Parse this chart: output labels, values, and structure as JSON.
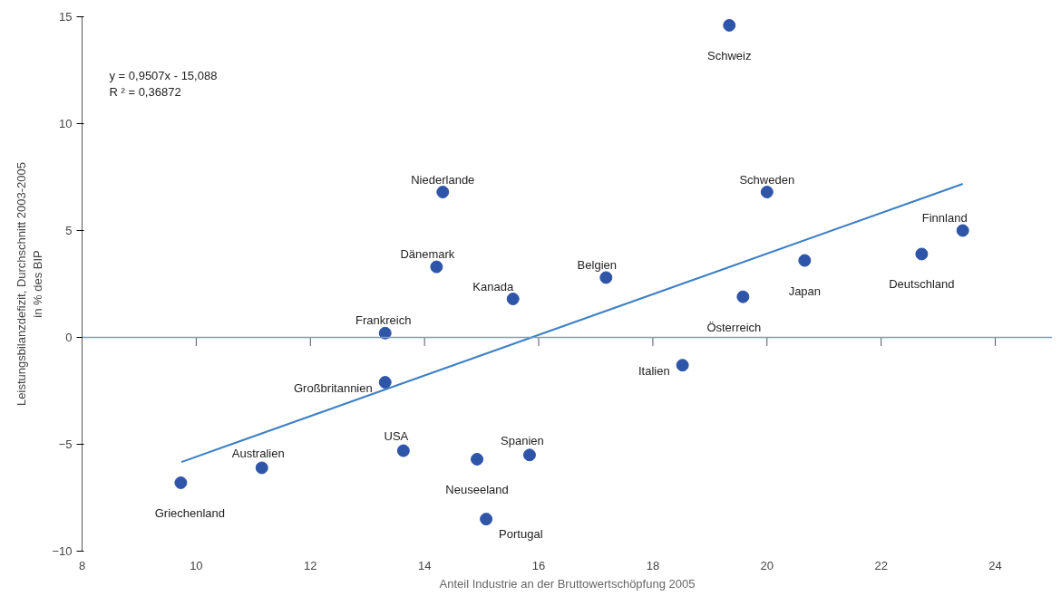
{
  "chart_data": {
    "type": "scatter",
    "xlabel": "Anteil Industrie an der Bruttowertschöpfung 2005",
    "ylabel": "Leistungsbilanzdefizit, Durchschnitt 2003-2005\nin % des BIP",
    "xlim": [
      8,
      25
    ],
    "ylim": [
      -10,
      15
    ],
    "xticks": [
      8,
      10,
      12,
      14,
      16,
      18,
      20,
      22,
      24
    ],
    "yticks": [
      -10,
      -5,
      0,
      5,
      10,
      15
    ],
    "grid": false,
    "marker": "circle",
    "series": [
      {
        "color": "#2f55a8",
        "x": [
          19.34,
          14.32,
          20.0,
          23.43,
          14.21,
          17.18,
          15.55,
          20.66,
          22.71,
          19.58,
          13.31,
          18.52,
          13.31,
          13.63,
          11.15,
          9.73,
          14.92,
          15.84,
          15.08
        ],
        "values": [
          14.6,
          6.8,
          6.8,
          5.0,
          3.3,
          2.8,
          1.8,
          3.6,
          3.9,
          1.9,
          0.2,
          -1.3,
          -2.1,
          -5.3,
          -6.1,
          -6.8,
          -5.7,
          -5.5,
          -8.5
        ]
      },
      {
        "type": "line",
        "marker": "none",
        "color": "#3d7fc4",
        "x": [
          9.74,
          23.43
        ],
        "values": [
          -5.83,
          7.18
        ]
      }
    ],
    "ref_lines": [
      {
        "axis": "y",
        "value": 0,
        "color": "#7a9cc6"
      }
    ],
    "annotations": [
      {
        "text": "Schweiz",
        "x": 19.34,
        "y": 14.6
      },
      {
        "text": "Niederlande",
        "x": 14.32,
        "y": 6.8
      },
      {
        "text": "Schweden",
        "x": 20.0,
        "y": 6.8
      },
      {
        "text": "Finnland",
        "x": 23.43,
        "y": 5.0
      },
      {
        "text": "Dänemark",
        "x": 14.21,
        "y": 3.3
      },
      {
        "text": "Belgien",
        "x": 17.18,
        "y": 2.8
      },
      {
        "text": "Kanada",
        "x": 15.55,
        "y": 1.8
      },
      {
        "text": "Japan",
        "x": 20.66,
        "y": 3.6
      },
      {
        "text": "Deutschland",
        "x": 22.71,
        "y": 3.9
      },
      {
        "text": "Österreich",
        "x": 19.58,
        "y": 1.9
      },
      {
        "text": "Frankreich",
        "x": 13.31,
        "y": 0.2
      },
      {
        "text": "Italien",
        "x": 18.52,
        "y": -1.3
      },
      {
        "text": "Großbritannien",
        "x": 13.31,
        "y": -2.1
      },
      {
        "text": "USA",
        "x": 13.63,
        "y": -5.3
      },
      {
        "text": "Australien",
        "x": 11.15,
        "y": -6.1
      },
      {
        "text": "Griechenland",
        "x": 9.73,
        "y": -6.8
      },
      {
        "text": "Neuseeland",
        "x": 14.92,
        "y": -5.7
      },
      {
        "text": "Spanien",
        "x": 15.84,
        "y": -5.5
      },
      {
        "text": "Portugal",
        "x": 15.08,
        "y": -8.5
      },
      "y = 0,9507x - 15,088\nR ² = 0,36872"
    ]
  }
}
